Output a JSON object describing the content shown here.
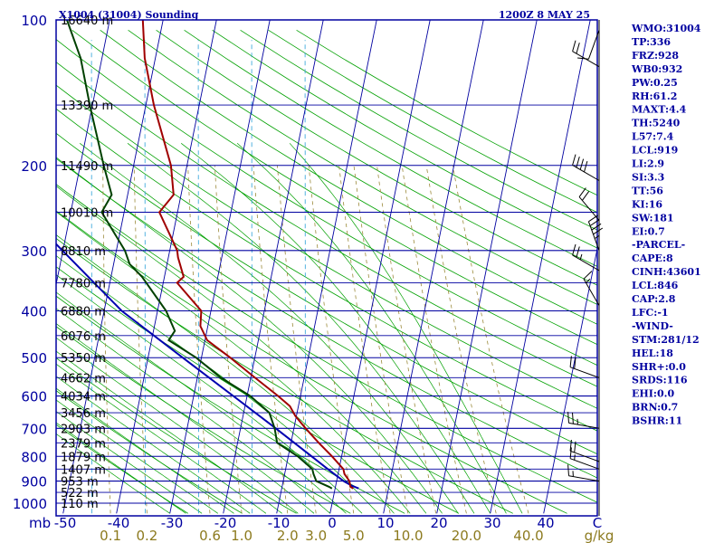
{
  "title_left": "X1004 (31004) Sounding",
  "title_right": "1200Z  8 MAY 25",
  "colors": {
    "frame": "#0000a0",
    "isobar": "#0000a0",
    "isotherm": "#0000a0",
    "dry_adiabat": "#00a000",
    "moist_adiabat": "#00a000",
    "mixing_ratio": "#9b8a3a",
    "saturation": "#2aa0d8",
    "temperature": "#a00000",
    "dewpoint": "#004000",
    "parcel": "#0000b0",
    "wind_barb": "#000000"
  },
  "chart_data": {
    "type": "skew-t log-p",
    "pressure_axis_label": "mb",
    "pressure_ticks": [
      "100",
      "200",
      "300",
      "400",
      "500",
      "600",
      "700",
      "800",
      "900",
      "1000"
    ],
    "pressure_range_hpa": [
      1000,
      100
    ],
    "temperature_ticks": [
      "-50",
      "-40",
      "-30",
      "-20",
      "-10",
      "0",
      "10",
      "20",
      "30",
      "40",
      "C"
    ],
    "temperature_range_c": [
      -50,
      50
    ],
    "temperature_unit": "C",
    "mixing_ratio_ticks": [
      "0.1",
      "0.2",
      "0.6",
      "1.0",
      "2.0",
      "3.0",
      "5.0",
      "10.0",
      "20.0",
      "40.0"
    ],
    "mixing_ratio_unit": "g/kg",
    "height_labels": [
      {
        "p": 100,
        "label": "16640 m"
      },
      {
        "p": 150,
        "label": "13390 m"
      },
      {
        "p": 200,
        "label": "11490 m"
      },
      {
        "p": 250,
        "label": "10010 m"
      },
      {
        "p": 300,
        "label": "8810 m"
      },
      {
        "p": 350,
        "label": "7780 m"
      },
      {
        "p": 400,
        "label": "6880 m"
      },
      {
        "p": 450,
        "label": "6076 m"
      },
      {
        "p": 500,
        "label": "5350 m"
      },
      {
        "p": 550,
        "label": "4662 m"
      },
      {
        "p": 600,
        "label": "4034 m"
      },
      {
        "p": 650,
        "label": "3456 m"
      },
      {
        "p": 700,
        "label": "2903 m"
      },
      {
        "p": 750,
        "label": "2379 m"
      },
      {
        "p": 800,
        "label": "1879 m"
      },
      {
        "p": 850,
        "label": "1407 m"
      },
      {
        "p": 900,
        "label": "953 m"
      },
      {
        "p": 950,
        "label": "522 m"
      },
      {
        "p": 1000,
        "label": "110 m"
      }
    ],
    "temperature_profile": [
      {
        "p": 932,
        "t": 3.4
      },
      {
        "p": 925,
        "t": 2.8
      },
      {
        "p": 900,
        "t": 2.4
      },
      {
        "p": 870,
        "t": 1.2
      },
      {
        "p": 850,
        "t": 0.8
      },
      {
        "p": 800,
        "t": -1.8
      },
      {
        "p": 750,
        "t": -4.8
      },
      {
        "p": 700,
        "t": -7.8
      },
      {
        "p": 660,
        "t": -10.2
      },
      {
        "p": 630,
        "t": -11.6
      },
      {
        "p": 600,
        "t": -14.2
      },
      {
        "p": 550,
        "t": -19.2
      },
      {
        "p": 500,
        "t": -24.6
      },
      {
        "p": 460,
        "t": -29.6
      },
      {
        "p": 430,
        "t": -31.4
      },
      {
        "p": 400,
        "t": -31.8
      },
      {
        "p": 350,
        "t": -37.4
      },
      {
        "p": 340,
        "t": -36.4
      },
      {
        "p": 310,
        "t": -38.2
      },
      {
        "p": 300,
        "t": -38.6
      },
      {
        "p": 250,
        "t": -43.4
      },
      {
        "p": 230,
        "t": -41.4
      },
      {
        "p": 200,
        "t": -43.0
      },
      {
        "p": 150,
        "t": -48.5
      },
      {
        "p": 120,
        "t": -52.0
      },
      {
        "p": 100,
        "t": -53.8
      }
    ],
    "dewpoint_profile": [
      {
        "p": 932,
        "td": -0.6
      },
      {
        "p": 925,
        "td": -1.2
      },
      {
        "p": 900,
        "td": -3.8
      },
      {
        "p": 870,
        "td": -4.6
      },
      {
        "p": 850,
        "td": -5.0
      },
      {
        "p": 800,
        "td": -8.2
      },
      {
        "p": 750,
        "td": -12.6
      },
      {
        "p": 700,
        "td": -13.6
      },
      {
        "p": 650,
        "td": -15.2
      },
      {
        "p": 600,
        "td": -19.4
      },
      {
        "p": 550,
        "td": -25.6
      },
      {
        "p": 500,
        "td": -31.0
      },
      {
        "p": 460,
        "td": -36.8
      },
      {
        "p": 440,
        "td": -36.0
      },
      {
        "p": 400,
        "td": -38.4
      },
      {
        "p": 340,
        "td": -44.2
      },
      {
        "p": 320,
        "td": -47.0
      },
      {
        "p": 300,
        "td": -48.4
      },
      {
        "p": 250,
        "td": -54.2
      },
      {
        "p": 230,
        "td": -53.0
      },
      {
        "p": 200,
        "td": -55.6
      },
      {
        "p": 150,
        "td": -60.5
      },
      {
        "p": 120,
        "td": -64.0
      },
      {
        "p": 100,
        "td": -68.0
      }
    ],
    "parcel_profile": [
      {
        "p": 932,
        "t": 4.4
      },
      {
        "p": 919,
        "t": 2.9
      },
      {
        "p": 900,
        "t": 1.3
      },
      {
        "p": 850,
        "t": -2.1
      },
      {
        "p": 800,
        "t": -5.6
      },
      {
        "p": 700,
        "t": -13.4
      },
      {
        "p": 600,
        "t": -22.6
      },
      {
        "p": 500,
        "t": -33.5
      },
      {
        "p": 400,
        "t": -46.7
      },
      {
        "p": 300,
        "t": -60.1
      },
      {
        "p": 250,
        "t": -68.6
      },
      {
        "p": 200,
        "t": -77.0
      },
      {
        "p": 150,
        "t": -88.0
      },
      {
        "p": 125,
        "t": -95.0
      }
    ],
    "wind_barbs": [
      {
        "p": 105,
        "dir": 200,
        "kt": 10
      },
      {
        "p": 125,
        "dir": 300,
        "kt": 20
      },
      {
        "p": 215,
        "dir": 300,
        "kt": 40
      },
      {
        "p": 260,
        "dir": 320,
        "kt": 20
      },
      {
        "p": 300,
        "dir": 340,
        "kt": 45
      },
      {
        "p": 330,
        "dir": 300,
        "kt": 25
      },
      {
        "p": 390,
        "dir": 330,
        "kt": 15
      },
      {
        "p": 550,
        "dir": 290,
        "kt": 20
      },
      {
        "p": 700,
        "dir": 280,
        "kt": 25
      },
      {
        "p": 820,
        "dir": 290,
        "kt": 20
      },
      {
        "p": 850,
        "dir": 290,
        "kt": 15
      },
      {
        "p": 900,
        "dir": 280,
        "kt": 15
      }
    ]
  },
  "indices": [
    "WMO:31004",
    "TP:336",
    "FRZ:928",
    "WB0:932",
    "PW:0.25",
    "RH:61.2",
    "MAXT:4.4",
    "TH:5240",
    "L57:7.4",
    "LCL:919",
    "LI:2.9",
    "SI:3.3",
    "TT:56",
    "KI:16",
    "SW:181",
    "EI:0.7",
    "-PARCEL-",
    "CAPE:8",
    "CINH:43601",
    "LCL:846",
    "CAP:2.8",
    "LFC:-1",
    "-WIND-",
    "STM:281/12",
    "HEL:18",
    "SHR+:0.0",
    "SRDS:116",
    "EHI:0.0",
    "BRN:0.7",
    "BSHR:11"
  ]
}
